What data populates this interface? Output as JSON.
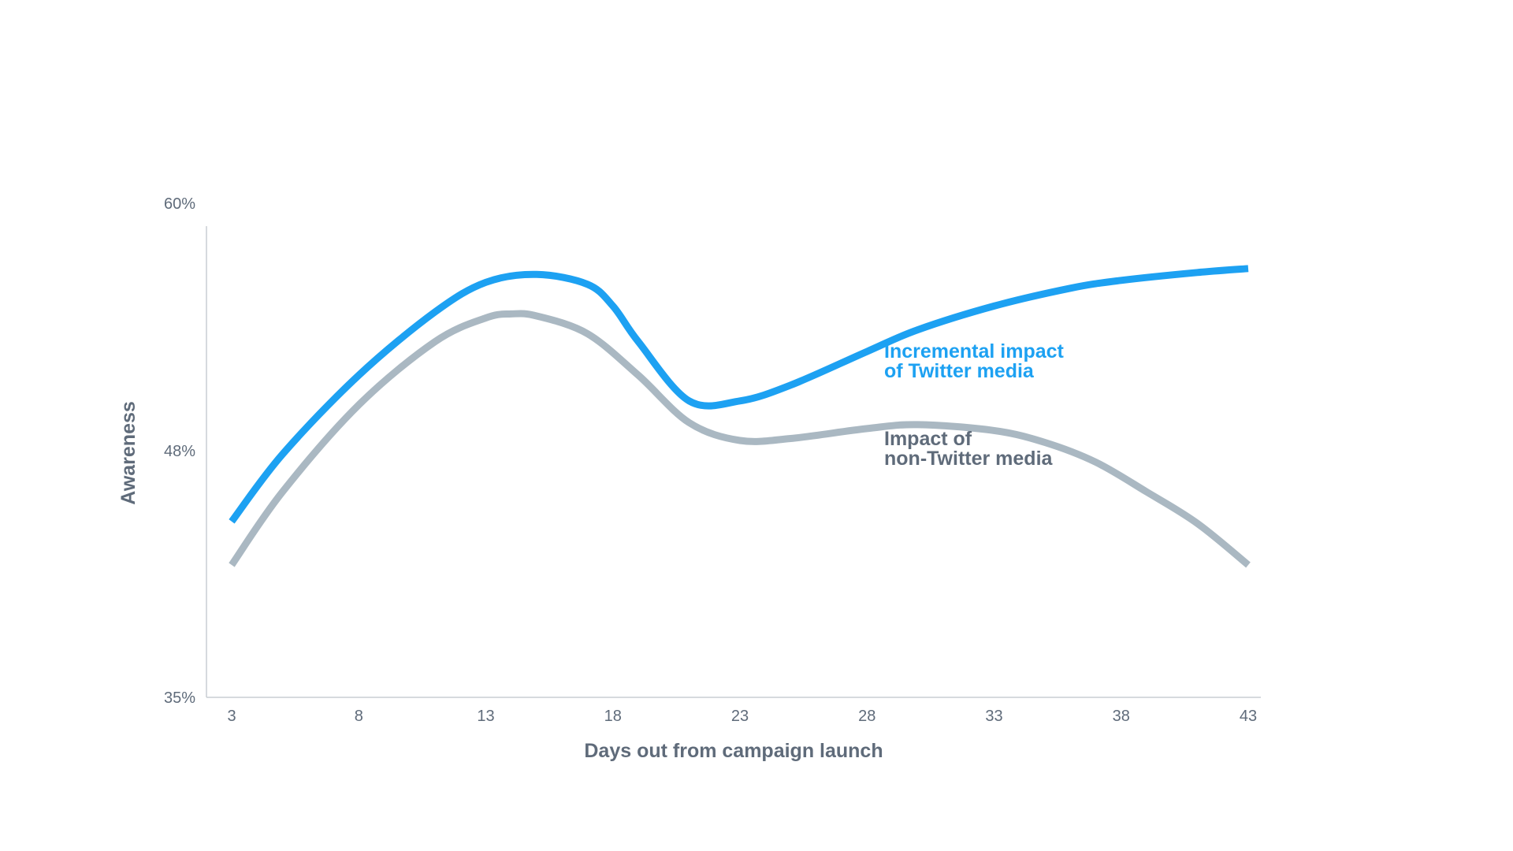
{
  "chart_data": {
    "type": "line",
    "xlabel": "Days out from campaign launch",
    "ylabel": "Awareness",
    "x_ticks": [
      "3",
      "8",
      "13",
      "18",
      "23",
      "28",
      "33",
      "38",
      "43"
    ],
    "y_ticks": [
      "35%",
      "48%",
      "60%"
    ],
    "xlim": [
      2.5,
      43.5
    ],
    "ylim": [
      35,
      60
    ],
    "grid": false,
    "series": [
      {
        "name": "Incremental impact of Twitter media",
        "label_lines": [
          "Incremental impact",
          "of Twitter media"
        ],
        "color": "#1da1f2",
        "x": [
          3,
          5,
          8,
          11,
          13,
          15,
          17,
          18,
          19,
          21,
          23,
          25,
          28,
          30,
          33,
          36,
          38,
          41,
          43
        ],
        "y": [
          43.9,
          47.3,
          51.3,
          54.5,
          56.0,
          56.4,
          55.9,
          54.8,
          53.0,
          50.0,
          50.0,
          50.8,
          52.5,
          53.6,
          54.8,
          55.7,
          56.1,
          56.5,
          56.7
        ]
      },
      {
        "name": "Impact of non-Twitter media",
        "label_lines": [
          "Impact of",
          "non-Twitter media"
        ],
        "color": "#aab8c2",
        "x": [
          3,
          5,
          8,
          11,
          13,
          14,
          15,
          17,
          19,
          21,
          23,
          25,
          28,
          30,
          33,
          35,
          37,
          39,
          41,
          43
        ],
        "y": [
          41.7,
          45.4,
          49.8,
          53.0,
          54.2,
          54.4,
          54.3,
          53.4,
          51.3,
          48.9,
          48.0,
          48.1,
          48.6,
          48.8,
          48.5,
          47.9,
          46.9,
          45.4,
          43.8,
          41.7
        ]
      }
    ]
  }
}
